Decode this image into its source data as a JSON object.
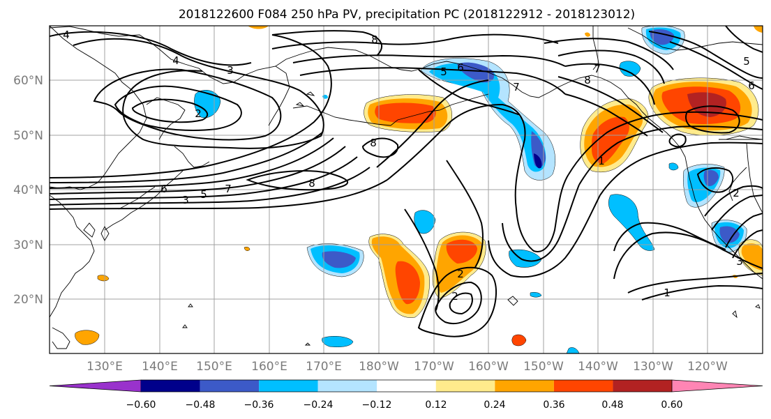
{
  "title": "2018122600 F084 250 hPa PV, precipitation PC (2018122912 - 2018123012)",
  "lat_labels": [
    "60°N",
    "50°N",
    "40°N",
    "30°N",
    "20°N"
  ],
  "lon_labels": [
    "130°E",
    "140°E",
    "150°E",
    "160°E",
    "170°E",
    "180°W",
    "170°W",
    "160°W",
    "150°W",
    "140°W",
    "130°W",
    "120°W"
  ],
  "contour_labels": [
    "4",
    "3",
    "2",
    "8",
    "5",
    "6",
    "7",
    "8",
    "5",
    "4",
    "3",
    "7",
    "8",
    "7",
    "5",
    "6",
    "8",
    "2",
    "2",
    "1",
    "1",
    "2",
    "3",
    "6"
  ],
  "colorbar": {
    "ticks": [
      "−0.60",
      "−0.48",
      "−0.36",
      "−0.24",
      "−0.12",
      "0.12",
      "0.24",
      "0.36",
      "0.48",
      "0.60"
    ],
    "colors": [
      "#9932cc",
      "#00008b",
      "#3c5ac8",
      "#00bfff",
      "#b4e4ff",
      "#ffffff",
      "#ffeb8c",
      "#ffa500",
      "#ff4500",
      "#b22222",
      "#ff85b4"
    ]
  },
  "map": {
    "lon_range": [
      "120°E",
      "110°W"
    ],
    "lat_range": [
      "10°N",
      "70°N"
    ],
    "field": "250 hPa PV",
    "shading": "precipitation PC"
  }
}
